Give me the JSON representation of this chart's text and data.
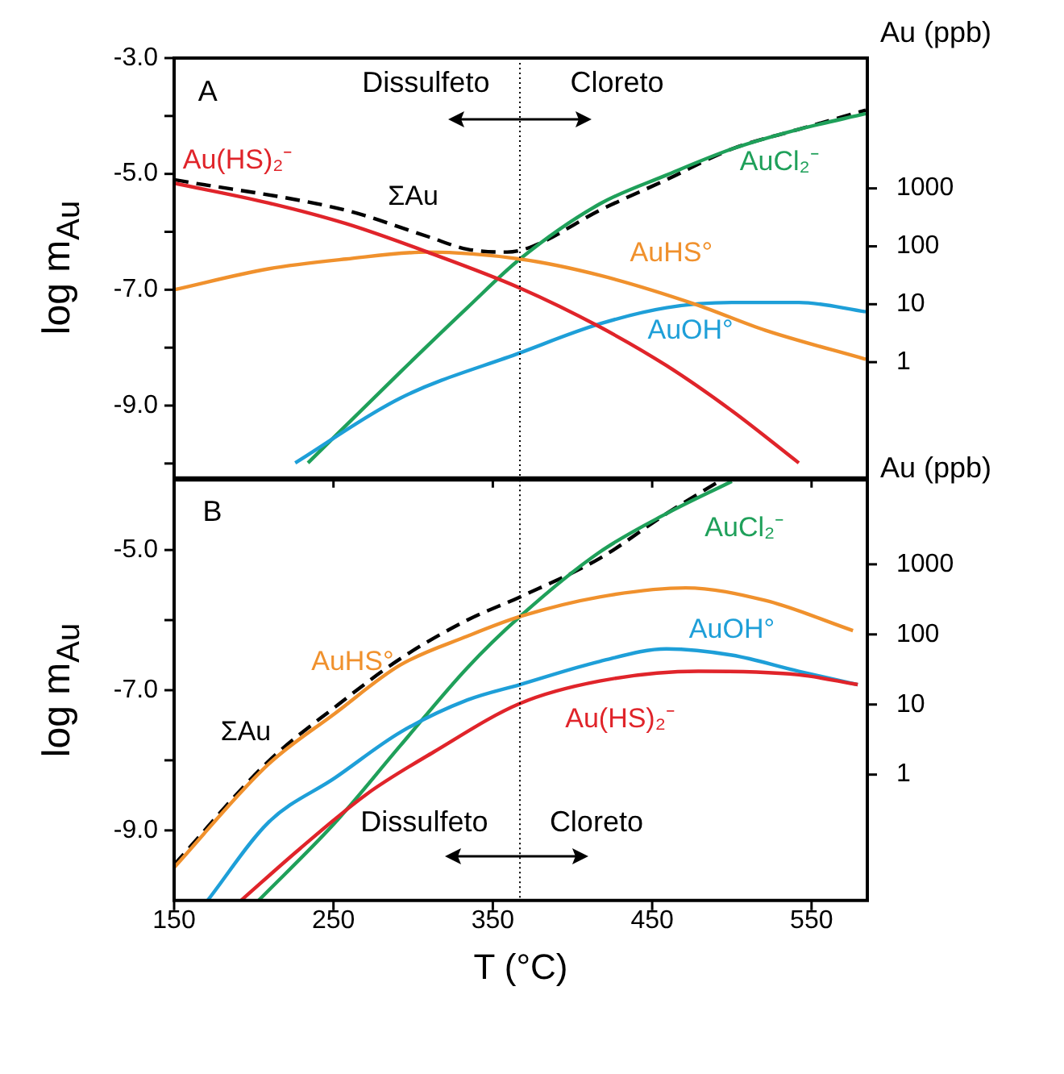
{
  "chart_data": [
    {
      "type": "line",
      "ylabel": "log m$_{Au}$",
      "y2label": "Au (ppb)",
      "annotations": [
        "A",
        "Dissulfeto",
        "Cloreto"
      ],
      "xlim": [
        150,
        585
      ],
      "xticks": [
        150,
        250,
        350,
        450,
        550
      ],
      "ylim": [
        -10.25,
        -3.0
      ],
      "yticks": [
        {
          "value": -3,
          "label": "-3.0"
        },
        {
          "value": -4,
          "label": null
        },
        {
          "value": -5,
          "label": "-5.0"
        },
        {
          "value": -6,
          "label": null
        },
        {
          "value": -7,
          "label": "-7.0"
        },
        {
          "value": -8,
          "label": null
        },
        {
          "value": -9,
          "label": "-9.0"
        },
        {
          "value": -10,
          "label": null
        }
      ],
      "y2lim": [
        0.01,
        178000
      ],
      "y2ticks": [
        1,
        10,
        100,
        1000
      ],
      "log": "y2",
      "tick_labels": "y",
      "grid": false,
      "legend": false,
      "marker": "none",
      "ref_lines": [
        {
          "axis": "x",
          "value": 367,
          "line_style": "dotted",
          "color": "#000000"
        }
      ],
      "series": [
        {
          "name": "Au(HS)₂⁻",
          "color": "#e0242a",
          "x": [
            150,
            209,
            258,
            309,
            367,
            417,
            459,
            500,
            542
          ],
          "values": [
            -5.16,
            -5.5,
            -5.86,
            -6.35,
            -6.97,
            -7.64,
            -8.31,
            -9.09,
            -9.99
          ]
        },
        {
          "name": "AuHS°",
          "color": "#f0912d",
          "x": [
            150,
            209,
            258,
            309,
            367,
            417,
            477,
            521,
            584
          ],
          "values": [
            -7.0,
            -6.64,
            -6.47,
            -6.35,
            -6.47,
            -6.75,
            -7.25,
            -7.7,
            -8.2
          ]
        },
        {
          "name": "AuOH°",
          "color": "#1e9fd8",
          "x": [
            226,
            292,
            367,
            417,
            459,
            500,
            542,
            584
          ],
          "values": [
            -9.99,
            -8.87,
            -8.09,
            -7.59,
            -7.31,
            -7.22,
            -7.22,
            -7.38
          ]
        },
        {
          "name": "AuCl₂⁻",
          "color": "#1fa05a",
          "x": [
            234,
            292,
            334,
            367,
            417,
            459,
            500,
            542,
            584
          ],
          "values": [
            -9.99,
            -8.42,
            -7.31,
            -6.47,
            -5.52,
            -5.02,
            -4.57,
            -4.23,
            -3.96
          ]
        },
        {
          "name": "ΣAu",
          "color": "#000000",
          "line_style": "dashed",
          "x": [
            150,
            258,
            309,
            334,
            359,
            375,
            417,
            459,
            500,
            542,
            584
          ],
          "values": [
            -5.1,
            -5.63,
            -6.08,
            -6.3,
            -6.35,
            -6.25,
            -5.63,
            -5.1,
            -4.57,
            -4.23,
            -3.9
          ]
        }
      ]
    },
    {
      "type": "line",
      "xlabel": "T (°C)",
      "ylabel": "log m$_{Au}$",
      "y2label": "Au (ppb)",
      "annotations": [
        "B",
        "Dissulfeto",
        "Cloreto"
      ],
      "xlim": [
        150,
        585
      ],
      "xticks": [
        150,
        250,
        350,
        450,
        550
      ],
      "ylim": [
        -10,
        -4
      ],
      "yticks": [
        {
          "value": -5,
          "label": "-5.0"
        },
        {
          "value": -6,
          "label": null
        },
        {
          "value": -7,
          "label": "-7.0"
        },
        {
          "value": -8,
          "label": null
        },
        {
          "value": -9,
          "label": "-9.0"
        }
      ],
      "y2lim": [
        0.016,
        16000
      ],
      "y2ticks": [
        1,
        10,
        100,
        1000
      ],
      "log": "y2",
      "grid": false,
      "legend": false,
      "marker": "none",
      "ref_lines": [
        {
          "axis": "x",
          "value": 367,
          "line_style": "dotted",
          "color": "#000000"
        }
      ],
      "series": [
        {
          "name": "Au(HS)₂⁻",
          "color": "#e0242a",
          "x": [
            192,
            229,
            271,
            313,
            367,
            417,
            479,
            542,
            579
          ],
          "values": [
            -10.0,
            -9.26,
            -8.48,
            -7.88,
            -7.19,
            -6.87,
            -6.73,
            -6.78,
            -6.92
          ]
        },
        {
          "name": "AuHS°",
          "color": "#f0912d",
          "x": [
            150,
            209,
            251,
            292,
            334,
            367,
            417,
            471,
            521,
            576
          ],
          "values": [
            -9.53,
            -8.06,
            -7.33,
            -6.64,
            -6.23,
            -5.95,
            -5.67,
            -5.54,
            -5.72,
            -6.15
          ]
        },
        {
          "name": "AuOH°",
          "color": "#1e9fd8",
          "x": [
            171,
            209,
            251,
            292,
            334,
            367,
            417,
            459,
            500,
            542,
            579
          ],
          "values": [
            -10.0,
            -8.89,
            -8.25,
            -7.6,
            -7.14,
            -6.92,
            -6.59,
            -6.41,
            -6.5,
            -6.73,
            -6.92
          ]
        },
        {
          "name": "AuCl₂⁻",
          "color": "#1fa05a",
          "x": [
            203,
            251,
            292,
            334,
            367,
            417,
            459,
            500
          ],
          "values": [
            -10.0,
            -8.89,
            -7.79,
            -6.68,
            -5.95,
            -5.03,
            -4.48,
            -4.02
          ]
        },
        {
          "name": "ΣAu",
          "color": "#000000",
          "line_style": "dashed",
          "x": [
            150,
            209,
            251,
            292,
            334,
            367,
            417,
            459,
            492
          ],
          "values": [
            -9.49,
            -8.02,
            -7.24,
            -6.55,
            -6.0,
            -5.67,
            -5.12,
            -4.48,
            -4.02
          ]
        }
      ]
    }
  ]
}
